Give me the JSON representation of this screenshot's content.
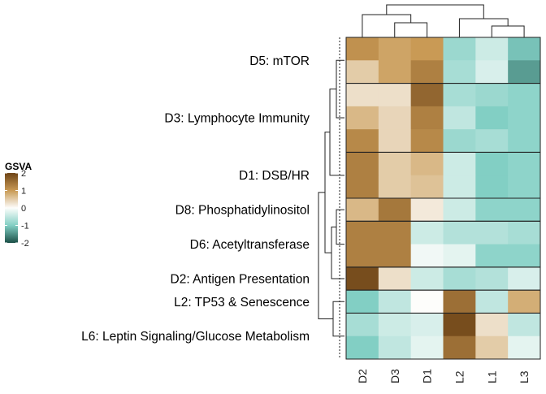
{
  "chart_data": {
    "type": "heatmap",
    "title": "",
    "columns": [
      "D2",
      "D3",
      "D1",
      "L2",
      "L1",
      "L3"
    ],
    "row_groups": [
      {
        "label": "D5: mTOR",
        "rows": 2
      },
      {
        "label": "D3: Lymphocyte Immunity",
        "rows": 3
      },
      {
        "label": "D1: DSB/HR",
        "rows": 2
      },
      {
        "label": "D8: Phosphatidylinositol",
        "rows": 1
      },
      {
        "label": "D6: Acetyltransferase",
        "rows": 2
      },
      {
        "label": "D2: Antigen Presentation",
        "rows": 1
      },
      {
        "label": "L2: TP53 & Senescence",
        "rows": 1
      },
      {
        "label": "L6: Leptin Signaling/Glucose Metabolism",
        "rows": 2
      }
    ],
    "values": [
      [
        1.1,
        0.9,
        1.0,
        -0.8,
        -0.4,
        -1.1
      ],
      [
        0.5,
        0.9,
        1.3,
        -0.7,
        -0.3,
        -1.4
      ],
      [
        0.3,
        0.3,
        1.6,
        -0.7,
        -0.8,
        -0.9
      ],
      [
        0.7,
        0.4,
        1.3,
        -0.5,
        -1.0,
        -0.9
      ],
      [
        1.2,
        0.4,
        1.2,
        -0.8,
        -0.7,
        -0.9
      ],
      [
        1.3,
        0.5,
        0.7,
        -0.4,
        -1.0,
        -0.9
      ],
      [
        1.3,
        0.5,
        0.6,
        -0.4,
        -1.0,
        -0.9
      ],
      [
        0.7,
        1.4,
        0.2,
        -0.4,
        -0.9,
        -0.9
      ],
      [
        1.3,
        1.3,
        -0.4,
        -0.6,
        -0.6,
        -0.7
      ],
      [
        1.3,
        1.3,
        -0.1,
        -0.2,
        -0.9,
        -0.9
      ],
      [
        1.9,
        0.3,
        -0.4,
        -0.7,
        -0.6,
        -0.3
      ],
      [
        -1.0,
        -0.5,
        0.0,
        1.5,
        -0.5,
        0.8
      ],
      [
        -0.7,
        -0.4,
        -0.3,
        1.9,
        0.3,
        -0.5
      ],
      [
        -1.0,
        -0.5,
        -0.2,
        1.5,
        0.5,
        -0.2
      ]
    ],
    "legend": {
      "title": "GSVA",
      "ticks": [
        2,
        1,
        0,
        -1,
        -2
      ],
      "range": [
        -2,
        2
      ],
      "colors": {
        "low": "#1b4f47",
        "mid_low": "#82cfc4",
        "mid": "#fdfdfb",
        "mid_high": "#c99a55",
        "high": "#6e4417"
      }
    },
    "row_dendrogram": true,
    "column_dendrogram": true,
    "grid": false
  }
}
